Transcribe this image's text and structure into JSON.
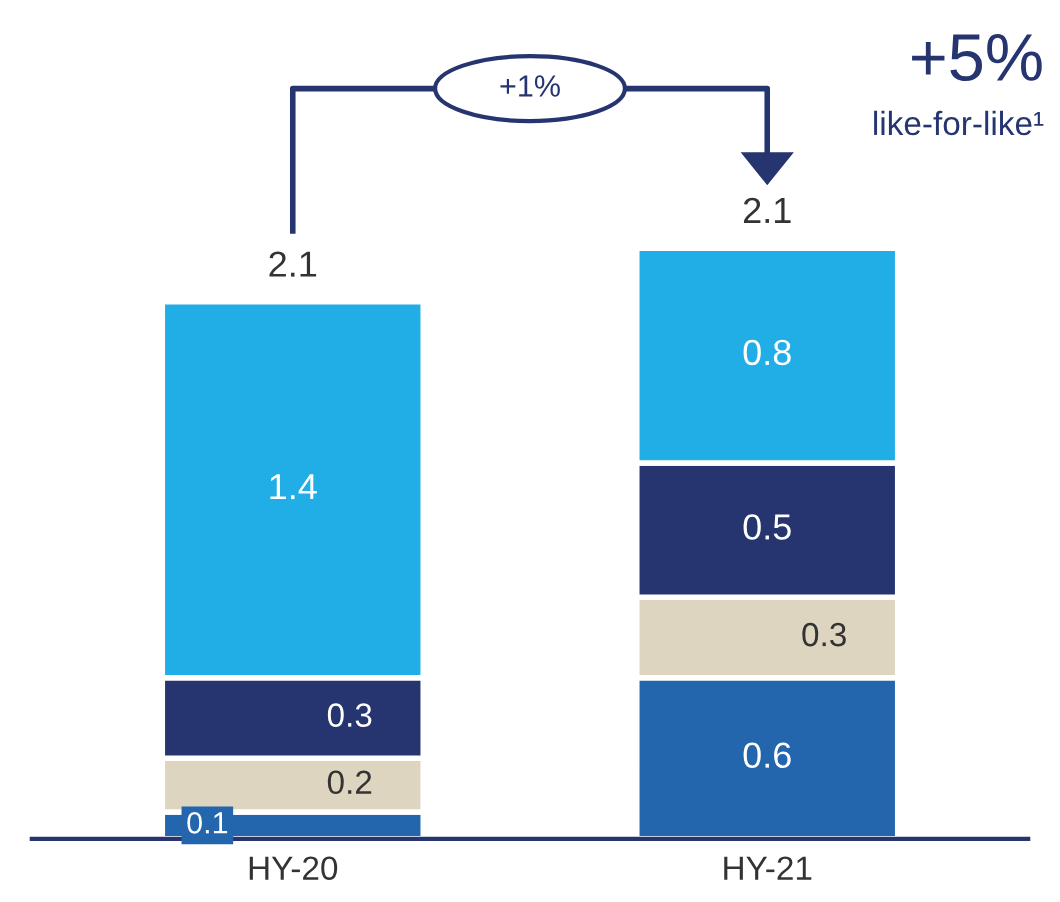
{
  "chart_data": {
    "type": "bar",
    "stacked": true,
    "categories": [
      "HY-20",
      "HY-21"
    ],
    "series": [
      {
        "color": "#2366ad",
        "values": [
          0.1,
          0.6
        ]
      },
      {
        "color": "#ddd5c0",
        "values": [
          0.2,
          0.3
        ]
      },
      {
        "color": "#263570",
        "values": [
          0.3,
          0.5
        ]
      },
      {
        "color": "#21ade6",
        "values": [
          1.4,
          0.8
        ]
      }
    ],
    "data_labels": true,
    "totals": [
      "2.1",
      "2.1"
    ],
    "legend": false,
    "annotations": [
      "+1%",
      "+5%",
      "like-for-like¹"
    ]
  }
}
